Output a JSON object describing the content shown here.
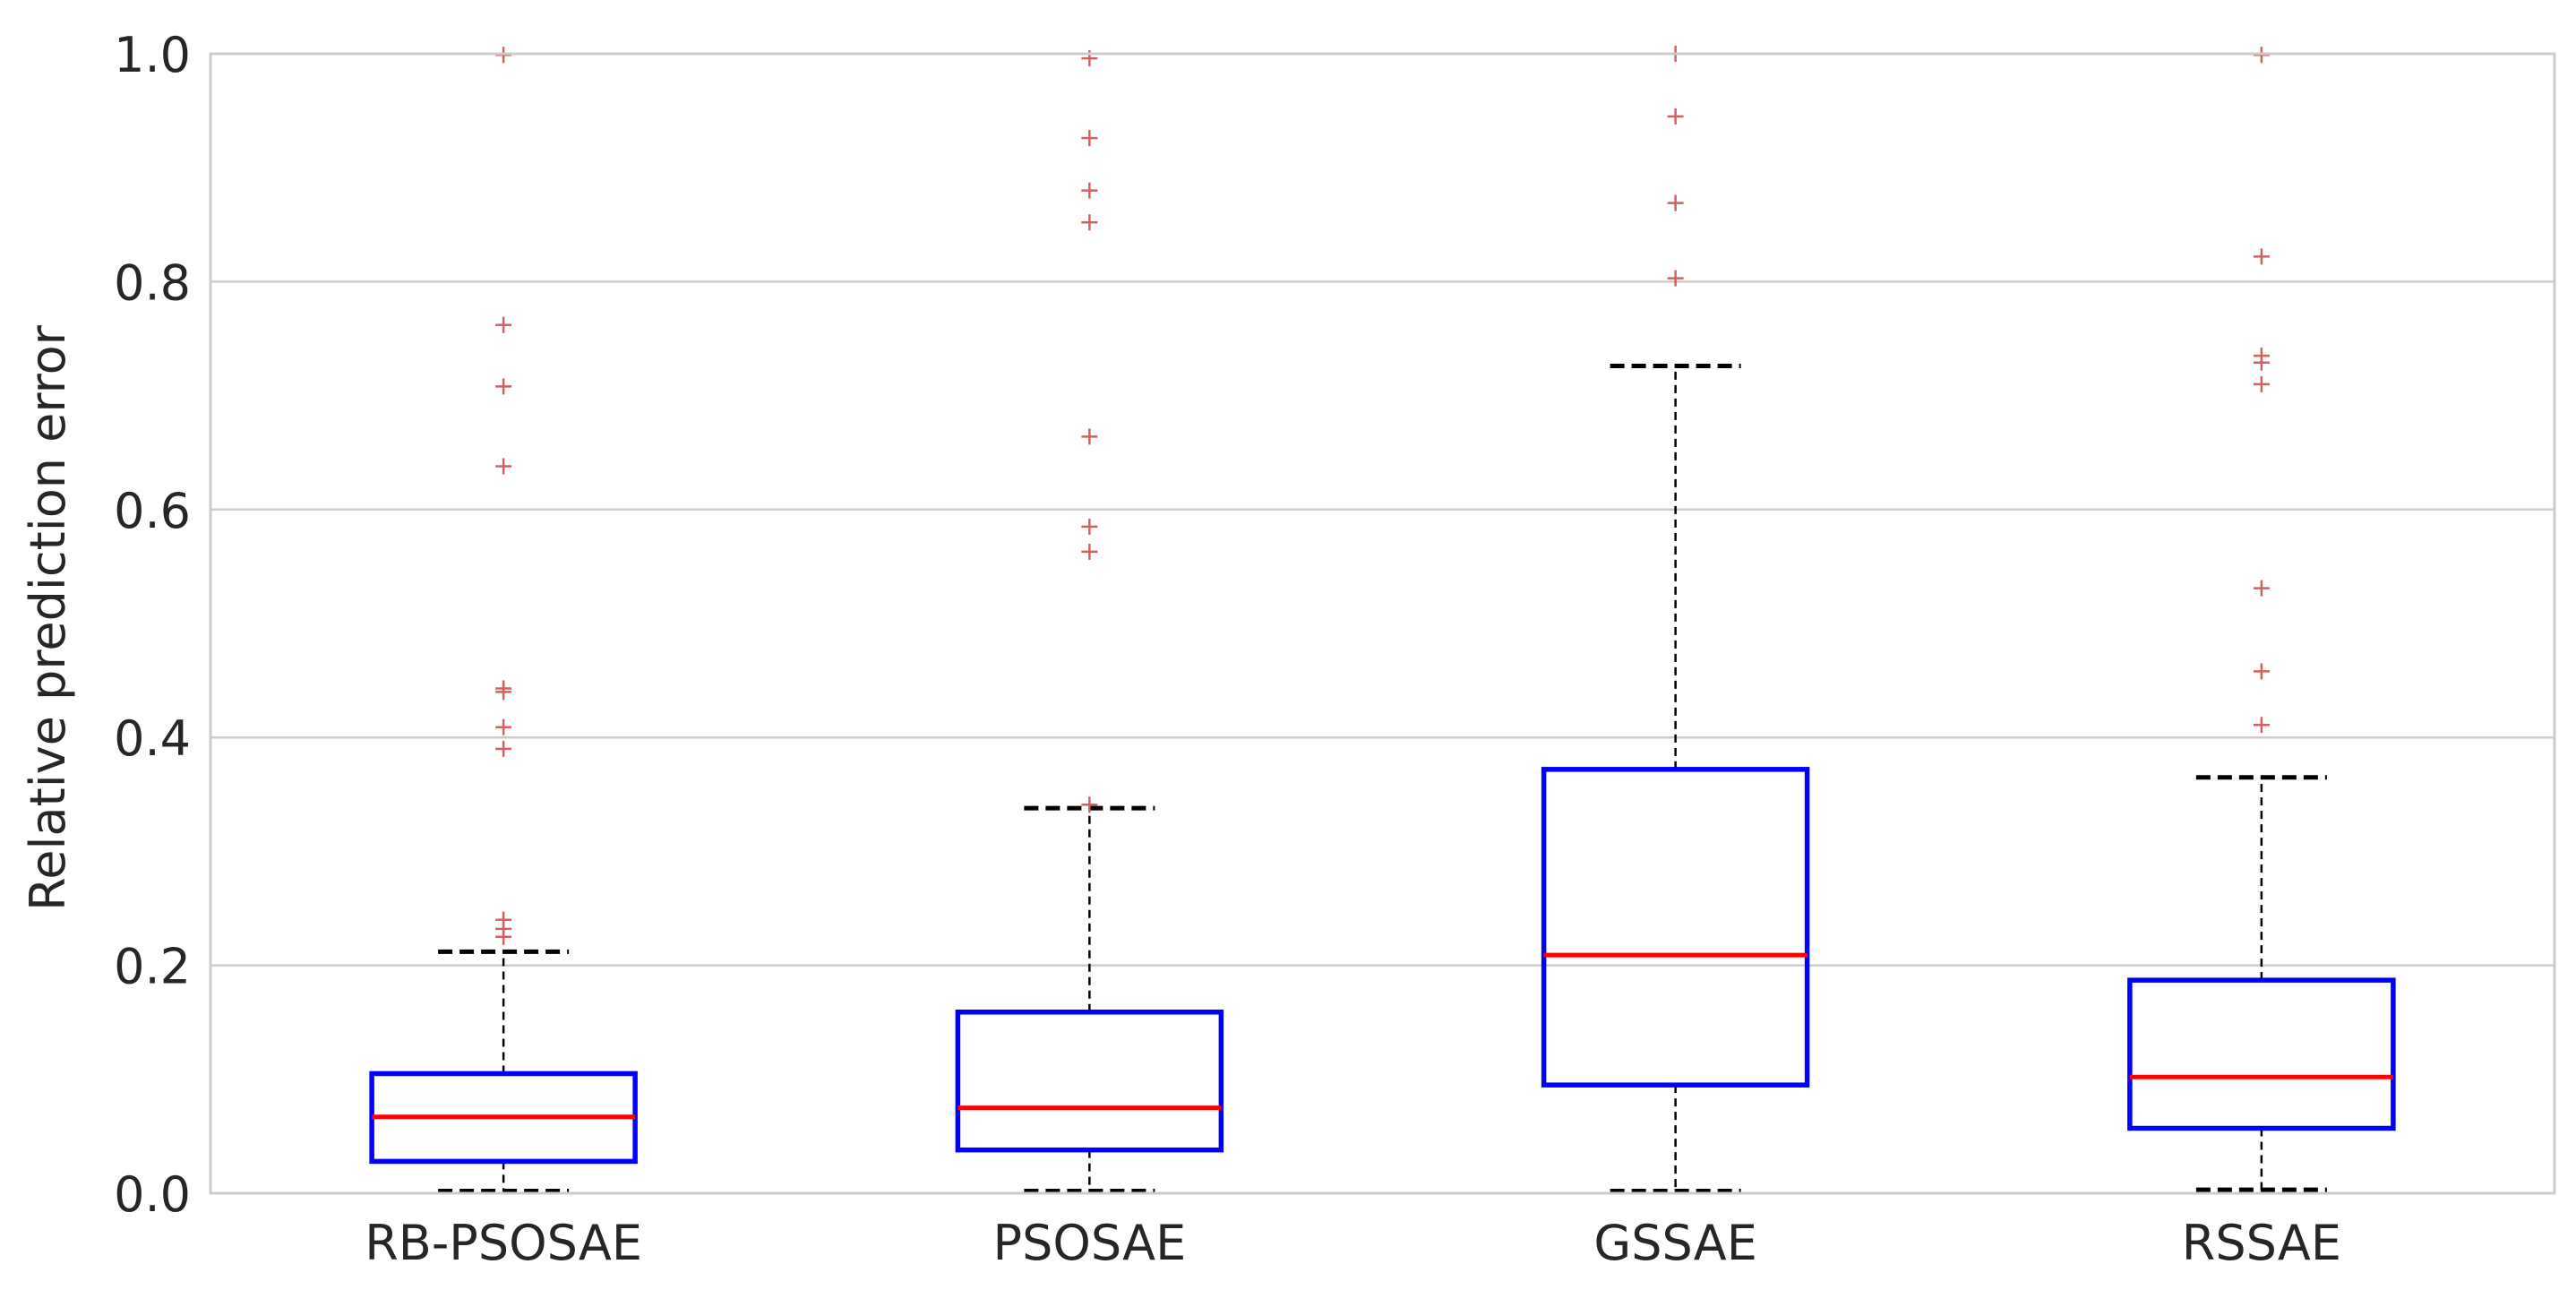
{
  "chart_data": {
    "type": "box",
    "title": "",
    "xlabel": "",
    "ylabel": "Relative prediction error",
    "ylim": [
      0.0,
      1.0
    ],
    "yticks": [
      "0.0",
      "0.2",
      "0.4",
      "0.6",
      "0.8",
      "1.0"
    ],
    "grid": true,
    "colors": {
      "box": "#0000ff",
      "median": "#ff0000",
      "whisker": "#000000",
      "flier": "#d65f5f",
      "grid": "#cccccc",
      "axes_edge": "#cccccc"
    },
    "categories": [
      "RB-PSOSAE",
      "PSOSAE",
      "GSSAE",
      "RSSAE"
    ],
    "boxes": [
      {
        "name": "RB-PSOSAE",
        "whislo": 0.002,
        "q1": 0.028,
        "median": 0.067,
        "q3": 0.105,
        "whishi": 0.212,
        "fliers": [
          0.225,
          0.232,
          0.24,
          0.39,
          0.409,
          0.44,
          0.443,
          0.638,
          0.708,
          0.762,
          0.999
        ]
      },
      {
        "name": "PSOSAE",
        "whislo": 0.002,
        "q1": 0.038,
        "median": 0.075,
        "q3": 0.159,
        "whishi": 0.338,
        "fliers": [
          0.341,
          0.563,
          0.585,
          0.664,
          0.852,
          0.88,
          0.926,
          0.996
        ]
      },
      {
        "name": "GSSAE",
        "whislo": 0.002,
        "q1": 0.095,
        "median": 0.209,
        "q3": 0.372,
        "whishi": 0.726,
        "fliers": [
          0.803,
          0.869,
          0.945,
          1.0
        ]
      },
      {
        "name": "RSSAE",
        "whislo": 0.003,
        "q1": 0.057,
        "median": 0.102,
        "q3": 0.187,
        "whishi": 0.365,
        "fliers": [
          0.411,
          0.458,
          0.531,
          0.71,
          0.729,
          0.735,
          0.822,
          0.999
        ]
      }
    ]
  }
}
